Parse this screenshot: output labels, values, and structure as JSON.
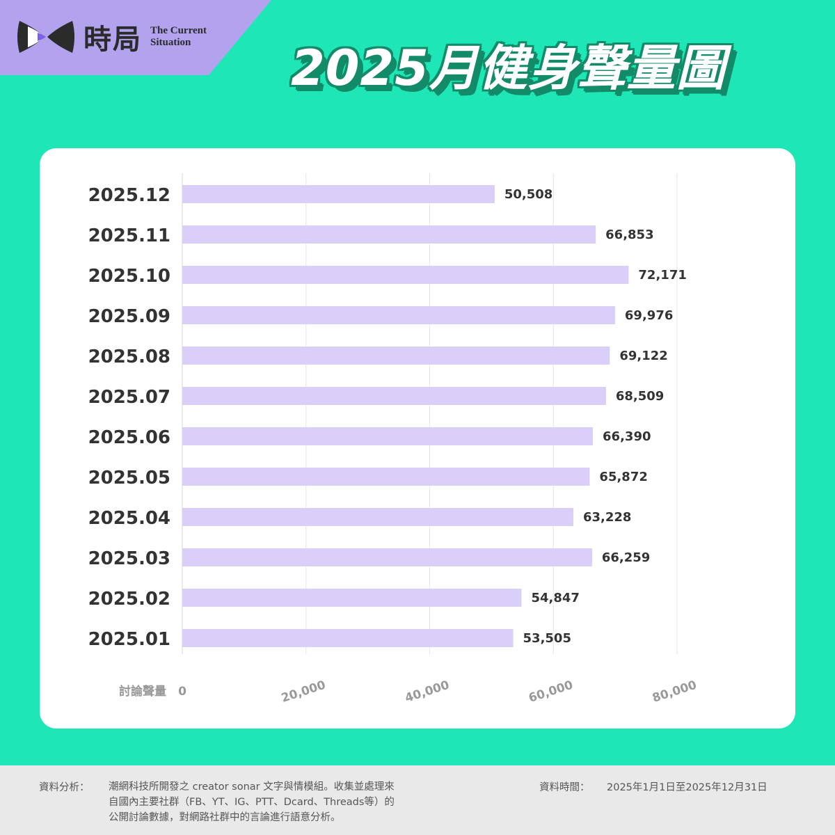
{
  "header": {
    "brand_cn": "時局",
    "brand_en_line1": "The Current",
    "brand_en_line2": "Situation",
    "title": "2025月健身聲量圖"
  },
  "colors": {
    "background": "#1ee6b6",
    "corner": "#b3a3ef",
    "bar": "#d9cff8",
    "title_shadow": "#138a68"
  },
  "chart_data": {
    "type": "bar",
    "orientation": "horizontal",
    "categories": [
      "2025.12",
      "2025.11",
      "2025.10",
      "2025.09",
      "2025.08",
      "2025.07",
      "2025.06",
      "2025.05",
      "2025.04",
      "2025.03",
      "2025.02",
      "2025.01"
    ],
    "values": [
      50508,
      66853,
      72171,
      69976,
      69122,
      68509,
      66390,
      65872,
      63228,
      66259,
      54847,
      53505
    ],
    "value_labels": [
      "50,508",
      "66,853",
      "72,171",
      "69,976",
      "69,122",
      "68,509",
      "66,390",
      "65,872",
      "63,228",
      "66,259",
      "54,847",
      "53,505"
    ],
    "xlabel": "討論聲量",
    "xlim": [
      0,
      80000
    ],
    "xticks": [
      0,
      20000,
      40000,
      60000,
      80000
    ],
    "xtick_labels": [
      "0",
      "20,000",
      "40,000",
      "60,000",
      "80,000"
    ],
    "grid": true
  },
  "footer": {
    "source_label": "資料分析：",
    "source_lines": [
      "潮網科技所開發之 creator sonar 文字與情模組。收集並處理來",
      "自國內主要社群（FB、YT、IG、PTT、Dcard、Threads等）的",
      "公開討論數據，對網路社群中的言論進行語意分析。"
    ],
    "time_label": "資料時間：",
    "time_value": "2025年1月1日至2025年12月31日"
  }
}
